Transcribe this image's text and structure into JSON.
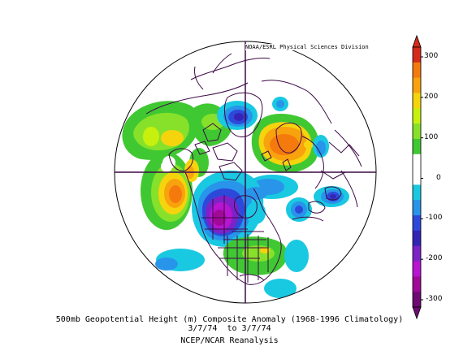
{
  "map": {
    "credit": "NOAA/ESRL Physical Sciences Division",
    "projection": "north polar stereographic",
    "features": [
      "coastlines",
      "country borders",
      "US state borders",
      "Canadian provinces"
    ],
    "anomalies": [
      {
        "region": "southern Greenland / Labrador Sea",
        "sign": "negative",
        "level": -140
      },
      {
        "region": "northern Scandinavia / Barents Sea",
        "sign": "positive",
        "level": 180
      },
      {
        "region": "Gulf of Alaska / NE Pacific",
        "sign": "positive",
        "level": 210
      },
      {
        "region": "central Siberia",
        "sign": "positive",
        "level": 160
      },
      {
        "region": "western Canada / Hudson Bay",
        "sign": "negative",
        "level": -310
      },
      {
        "region": "eastern Europe",
        "sign": "negative",
        "level": -150
      },
      {
        "region": "Caspian Sea region",
        "sign": "negative",
        "level": -210
      },
      {
        "region": "eastern United States",
        "sign": "positive",
        "level": 110
      },
      {
        "region": "North Atlantic",
        "sign": "negative",
        "level": -130
      }
    ]
  },
  "colorbar": {
    "ticks": [
      "300",
      "200",
      "100",
      "0",
      "-100",
      "-200",
      "-300"
    ],
    "tick_values": [
      300,
      200,
      100,
      0,
      -100,
      -200,
      -300
    ],
    "colors_top_to_bottom": [
      "#d42b1a",
      "#f57a0e",
      "#f8a20e",
      "#f5d40e",
      "#c8f00e",
      "#87e12a",
      "#40c832",
      "#ffffff",
      "#ffffff",
      "#19c8e1",
      "#2894ea",
      "#2d49da",
      "#3525b6",
      "#7c23c8",
      "#b814d2",
      "#a00a96",
      "#6e0a73"
    ]
  },
  "captions": {
    "line1": "500mb Geopotential Height (m) Composite Anomaly (1968-1996 Climatology)",
    "line2": "3/7/74  to 3/7/74",
    "line3": "NCEP/NCAR Reanalysis"
  }
}
